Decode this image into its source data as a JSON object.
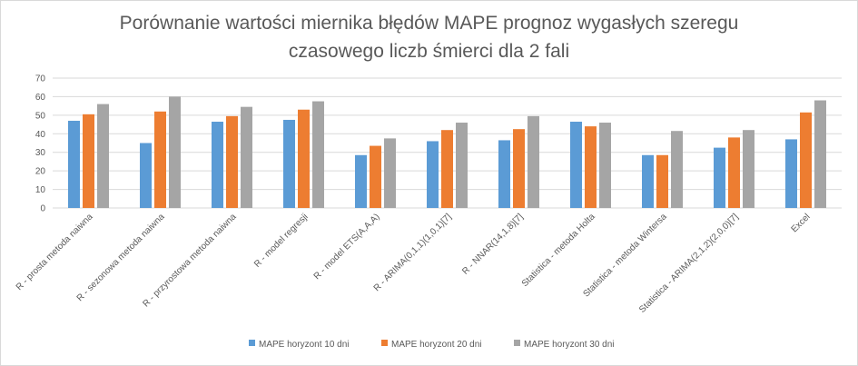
{
  "chart_data": {
    "type": "bar",
    "title": "Porównanie wartości miernika błędów MAPE prognoz wygasłych szeregu\nczasowego liczb śmierci dla 2 fali",
    "categories": [
      "R - prosta metoda naiwna",
      "R - sezonowa metoda naiwna",
      "R - przyrostowa metoda naiwna",
      "R - model regresji",
      "R - model ETS(A,A,A)",
      "R - ARIMA(0,1,1)(1,0,1)[7]",
      "R - NNAR(14,1,8)[7]",
      "Statistica - metoda Holta",
      "Statistica - metoda Wintersa",
      "Statistica - ARIMA(2,1,2)(2,0,0)[7]",
      "Excel"
    ],
    "series": [
      {
        "name": "MAPE horyzont 10 dni",
        "color": "#5b9bd5",
        "values": [
          47,
          35,
          46.5,
          47.5,
          28.5,
          36,
          36.5,
          46.5,
          28.5,
          32.5,
          37
        ]
      },
      {
        "name": "MAPE horyzont 20 dni",
        "color": "#ed7d31",
        "values": [
          50.5,
          52,
          49.5,
          53,
          33.5,
          42,
          42.5,
          44,
          28.5,
          38,
          51.5
        ]
      },
      {
        "name": "MAPE horyzont 30 dni",
        "color": "#a5a5a5",
        "values": [
          56,
          60,
          54.5,
          57.5,
          37.5,
          46,
          49.5,
          46,
          41.5,
          42,
          58
        ]
      }
    ],
    "xlabel": "",
    "ylabel": "",
    "ylim": [
      0,
      70
    ],
    "yticks": [
      0,
      10,
      20,
      30,
      40,
      50,
      60,
      70
    ],
    "grid": true,
    "legend": "bottom"
  }
}
